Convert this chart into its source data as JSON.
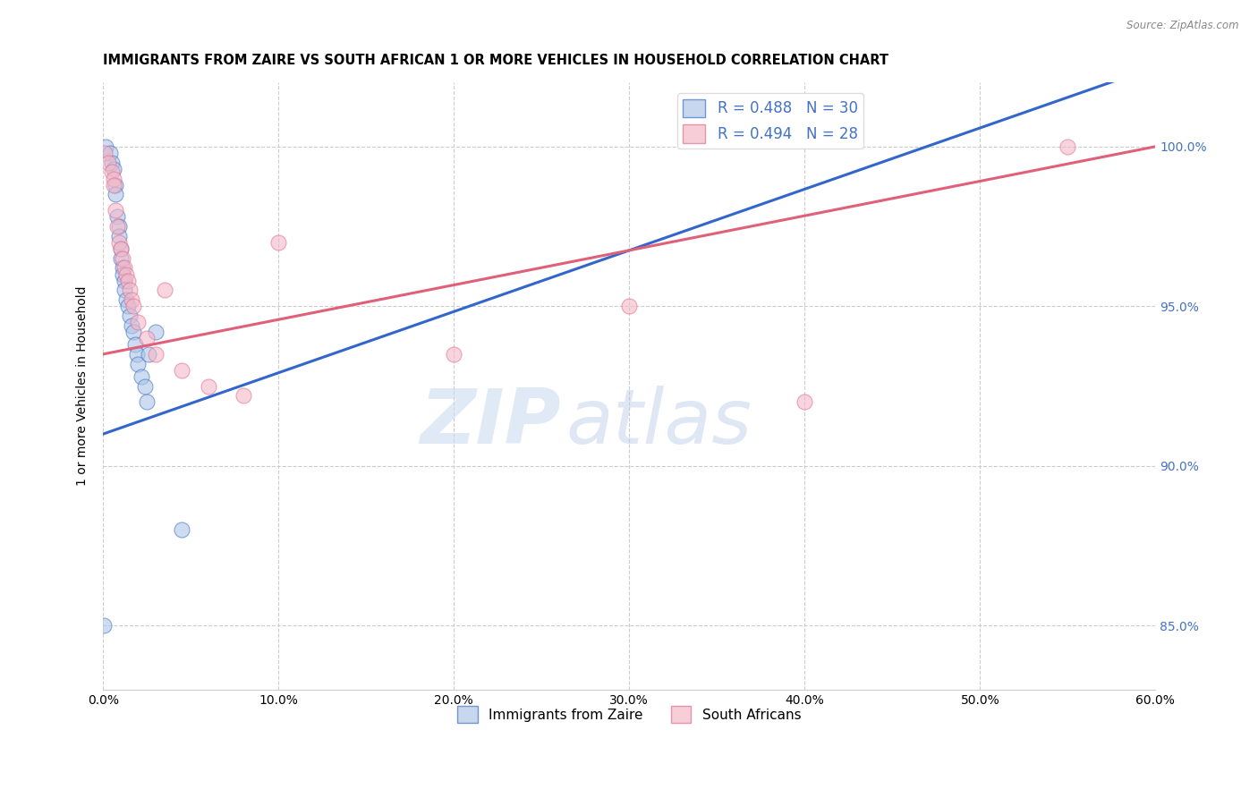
{
  "title": "IMMIGRANTS FROM ZAIRE VS SOUTH AFRICAN 1 OR MORE VEHICLES IN HOUSEHOLD CORRELATION CHART",
  "source": "Source: ZipAtlas.com",
  "ylabel": "1 or more Vehicles in Household",
  "x_tick_labels": [
    "0.0%",
    "10.0%",
    "20.0%",
    "30.0%",
    "40.0%",
    "50.0%",
    "60.0%"
  ],
  "x_tick_values": [
    0.0,
    10.0,
    20.0,
    30.0,
    40.0,
    50.0,
    60.0
  ],
  "y_tick_labels": [
    "85.0%",
    "90.0%",
    "95.0%",
    "100.0%"
  ],
  "y_tick_values": [
    85.0,
    90.0,
    95.0,
    100.0
  ],
  "xlim": [
    0.0,
    60.0
  ],
  "ylim": [
    83.0,
    102.0
  ],
  "legend_R1": "R = 0.488",
  "legend_N1": "N = 30",
  "legend_R2": "R = 0.494",
  "legend_N2": "N = 28",
  "blue_color": "#aec6e8",
  "pink_color": "#f4b8c8",
  "blue_edge_color": "#4472c4",
  "pink_edge_color": "#e07090",
  "blue_line_color": "#3366cc",
  "pink_line_color": "#e0607a",
  "watermark_zip": "ZIP",
  "watermark_atlas": "atlas",
  "blue_scatter_x": [
    0.15,
    0.4,
    0.5,
    0.6,
    0.7,
    0.7,
    0.8,
    0.9,
    0.9,
    1.0,
    1.0,
    1.1,
    1.1,
    1.2,
    1.2,
    1.3,
    1.4,
    1.5,
    1.6,
    1.7,
    1.8,
    1.9,
    2.0,
    2.2,
    2.4,
    2.5,
    2.6,
    3.0,
    4.5,
    0.05
  ],
  "blue_scatter_y": [
    100.0,
    99.8,
    99.5,
    99.3,
    98.8,
    98.5,
    97.8,
    97.5,
    97.2,
    96.8,
    96.5,
    96.2,
    96.0,
    95.8,
    95.5,
    95.2,
    95.0,
    94.7,
    94.4,
    94.2,
    93.8,
    93.5,
    93.2,
    92.8,
    92.5,
    92.0,
    93.5,
    94.2,
    88.0,
    85.0
  ],
  "pink_scatter_x": [
    0.1,
    0.3,
    0.5,
    0.6,
    0.6,
    0.7,
    0.8,
    0.9,
    1.0,
    1.1,
    1.2,
    1.3,
    1.4,
    1.5,
    1.6,
    1.7,
    2.0,
    2.5,
    3.0,
    3.5,
    4.5,
    6.0,
    8.0,
    55.0,
    40.0,
    30.0,
    20.0,
    10.0
  ],
  "pink_scatter_y": [
    99.8,
    99.5,
    99.2,
    99.0,
    98.8,
    98.0,
    97.5,
    97.0,
    96.8,
    96.5,
    96.2,
    96.0,
    95.8,
    95.5,
    95.2,
    95.0,
    94.5,
    94.0,
    93.5,
    95.5,
    93.0,
    92.5,
    92.2,
    100.0,
    92.0,
    95.0,
    93.5,
    97.0
  ],
  "blue_line_x": [
    0.0,
    60.0
  ],
  "blue_line_y": [
    91.0,
    102.5
  ],
  "pink_line_x": [
    0.0,
    60.0
  ],
  "pink_line_y": [
    93.5,
    100.0
  ]
}
